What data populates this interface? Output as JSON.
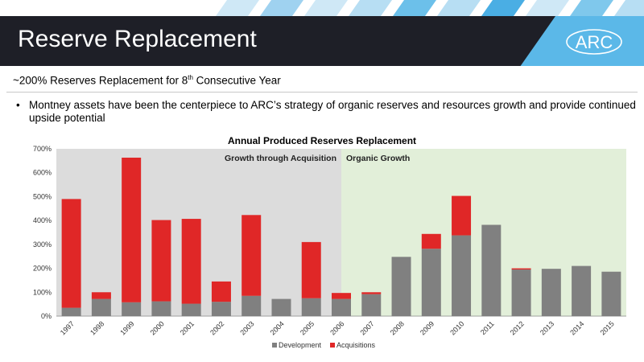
{
  "header": {
    "title": "Reserve Replacement",
    "logo_text": "ARC"
  },
  "subtitle": {
    "prefix": "~200% Reserves Replacement for 8",
    "sup": "th",
    "suffix": " Consecutive Year"
  },
  "bullets": [
    "Montney assets have been the centerpiece to ARC’s strategy of organic reserves and resources growth and provide continued upside potential"
  ],
  "colors": {
    "development": "#808080",
    "acquisitions": "#e02727",
    "acquisition_region": "#dcdcdc",
    "organic_region": "#e2efd9",
    "title_bar": "#1e1f27",
    "accent_blue": "#5bb8e8"
  },
  "chart_data": {
    "type": "bar",
    "stacked": true,
    "title": "Annual Produced Reserves Replacement",
    "categories": [
      "1997",
      "1998",
      "1999",
      "2000",
      "2001",
      "2002",
      "2003",
      "2004",
      "2005",
      "2006",
      "2007",
      "2008",
      "2009",
      "2010",
      "2011",
      "2012",
      "2013",
      "2014",
      "2015"
    ],
    "series": [
      {
        "name": "Development",
        "color": "#808080",
        "values": [
          35,
          72,
          58,
          62,
          52,
          60,
          85,
          72,
          75,
          72,
          92,
          248,
          282,
          338,
          382,
          195,
          198,
          210,
          186
        ]
      },
      {
        "name": "Acquisitions",
        "color": "#e02727",
        "values": [
          455,
          28,
          605,
          340,
          355,
          85,
          338,
          0,
          235,
          25,
          8,
          0,
          62,
          165,
          0,
          5,
          0,
          0,
          0
        ]
      }
    ],
    "y_ticks": [
      "0%",
      "100%",
      "200%",
      "300%",
      "400%",
      "500%",
      "600%",
      "700%"
    ],
    "ylim": [
      0,
      700
    ],
    "regions": [
      {
        "label": "Growth through Acquisition",
        "start": "1997",
        "end": "2006"
      },
      {
        "label": "Organic Growth",
        "start": "2006",
        "end": "2015"
      }
    ],
    "legend_position": "bottom",
    "grid": false
  }
}
